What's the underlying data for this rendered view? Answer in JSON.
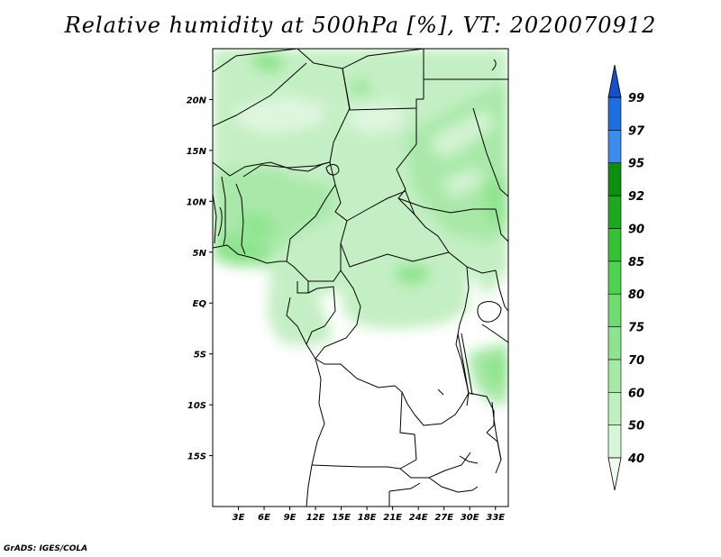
{
  "title": "Relative humidity at 500hPa [%], VT: 2020070912",
  "credit": "GrADS: IGES/COLA",
  "map": {
    "lon_range": [
      0,
      34.5
    ],
    "lat_range": [
      -20,
      25
    ],
    "lat_ticks": [
      {
        "value": 20,
        "label": "20N"
      },
      {
        "value": 15,
        "label": "15N"
      },
      {
        "value": 10,
        "label": "10N"
      },
      {
        "value": 5,
        "label": "5N"
      },
      {
        "value": 0,
        "label": "EQ"
      },
      {
        "value": -5,
        "label": "5S"
      },
      {
        "value": -10,
        "label": "10S"
      },
      {
        "value": -15,
        "label": "15S"
      }
    ],
    "lon_ticks": [
      {
        "value": 3,
        "label": "3E"
      },
      {
        "value": 6,
        "label": "6E"
      },
      {
        "value": 9,
        "label": "9E"
      },
      {
        "value": 12,
        "label": "12E"
      },
      {
        "value": 15,
        "label": "15E"
      },
      {
        "value": 18,
        "label": "18E"
      },
      {
        "value": 21,
        "label": "21E"
      },
      {
        "value": 24,
        "label": "24E"
      },
      {
        "value": 27,
        "label": "27E"
      },
      {
        "value": 30,
        "label": "30E"
      },
      {
        "value": 33,
        "label": "33E"
      }
    ]
  },
  "colorbar": {
    "levels": [
      "40",
      "50",
      "60",
      "70",
      "75",
      "80",
      "85",
      "90",
      "92",
      "95",
      "97",
      "99"
    ],
    "colors": [
      "#f0fcf0",
      "#d7f6d7",
      "#bff0bf",
      "#a6eaa6",
      "#8ee48e",
      "#6fdc6f",
      "#50d250",
      "#34c234",
      "#1ea81e",
      "#0e8e0e",
      "#3c8cec",
      "#1e6ee0",
      "#1450c8"
    ]
  }
}
